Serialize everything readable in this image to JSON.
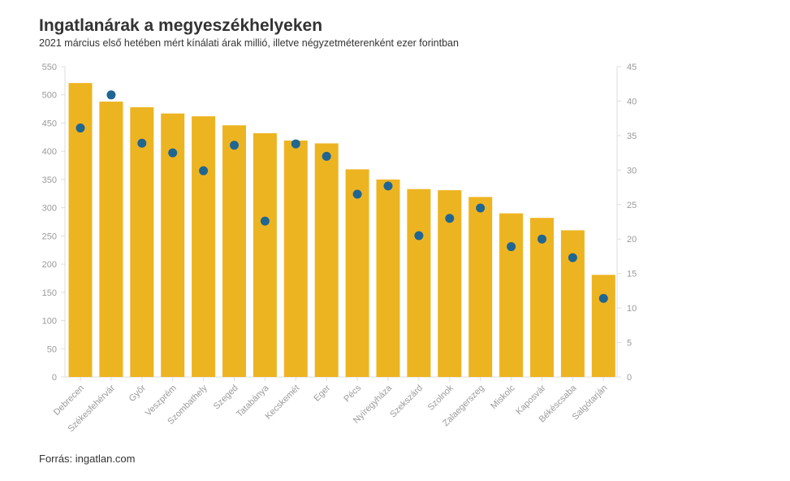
{
  "title": "Ingatlanárak a megyeszékhelyeken",
  "subtitle": "2021 március első hetében mért kínálati árak millió, illetve négyzetméterenként ezer forintban",
  "source": "Forrás: ingatlan.com",
  "colors": {
    "bar": "#EDB422",
    "dot": "#1F6692",
    "axis": "#dddddd",
    "tick_text": "#9a9a9a"
  },
  "chart_data": {
    "type": "bar",
    "categories": [
      "Debrecen",
      "Székesfehérvár",
      "Győr",
      "Veszprém",
      "Szombathely",
      "Szeged",
      "Tatabánya",
      "Kecskemét",
      "Eger",
      "Pécs",
      "Nyíregyháza",
      "Szekszárd",
      "Szolnok",
      "Zalaegerszeg",
      "Miskolc",
      "Kaposvár",
      "Békéscsaba",
      "Salgótarján"
    ],
    "series": [
      {
        "name": "bar (left axis)",
        "axis": "left",
        "values": [
          521,
          488,
          478,
          467,
          462,
          446,
          432,
          419,
          414,
          368,
          350,
          333,
          331,
          319,
          290,
          282,
          260,
          181
        ]
      },
      {
        "name": "dot (right axis)",
        "axis": "right",
        "values": [
          36.1,
          40.9,
          33.9,
          32.5,
          29.9,
          33.6,
          22.6,
          33.8,
          32.0,
          26.5,
          27.7,
          20.5,
          23.0,
          24.5,
          18.9,
          20.0,
          17.3,
          11.4
        ]
      }
    ],
    "y_left": {
      "min": 0,
      "max": 550,
      "ticks": [
        0,
        50,
        100,
        150,
        200,
        250,
        300,
        350,
        400,
        450,
        500,
        550
      ]
    },
    "y_right": {
      "min": 0,
      "max": 45,
      "ticks": [
        0,
        5,
        10,
        15,
        20,
        25,
        30,
        35,
        40,
        45
      ]
    },
    "legend": "none"
  }
}
